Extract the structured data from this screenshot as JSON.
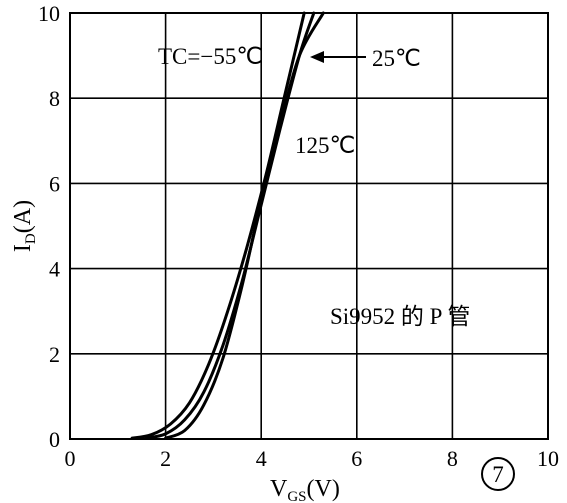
{
  "chart_data": {
    "type": "line",
    "title": "",
    "xlabel": "V",
    "xlabel_sub": "GS",
    "xlabel_unit": "(V)",
    "ylabel": "I",
    "ylabel_sub": "D",
    "ylabel_unit": "(A)",
    "xlim": [
      0,
      10
    ],
    "ylim": [
      0,
      10
    ],
    "xticks": [
      "0",
      "2",
      "4",
      "6",
      "8",
      "10"
    ],
    "yticks": [
      "0",
      "2",
      "4",
      "6",
      "8",
      "10"
    ],
    "grid": true,
    "series": [
      {
        "name": "TC=−55℃",
        "x": [
          1.3,
          1.7,
          2.1,
          2.5,
          2.9,
          3.3,
          3.7,
          4.1,
          4.5,
          4.9
        ],
        "y": [
          0.02,
          0.1,
          0.35,
          0.85,
          1.75,
          3.0,
          4.5,
          6.2,
          8.1,
          10.0
        ]
      },
      {
        "name": "25℃",
        "x": [
          1.6,
          2.0,
          2.4,
          2.8,
          3.2,
          3.6,
          4.0,
          4.4,
          4.8,
          5.1
        ],
        "y": [
          0.02,
          0.12,
          0.45,
          1.1,
          2.2,
          3.7,
          5.5,
          7.3,
          9.0,
          10.0
        ]
      },
      {
        "name": "125℃",
        "x": [
          2.0,
          2.4,
          2.8,
          3.2,
          3.6,
          4.0,
          4.4,
          4.8,
          5.3
        ],
        "y": [
          0.02,
          0.2,
          0.8,
          1.9,
          3.6,
          5.6,
          7.4,
          9.0,
          10.0
        ]
      }
    ],
    "annotations": {
      "tc_label": "TC=−55℃",
      "label_25": "25℃",
      "label_125": "125℃",
      "device_label": "Si9952 的 P 管",
      "figure_number": "7"
    }
  }
}
